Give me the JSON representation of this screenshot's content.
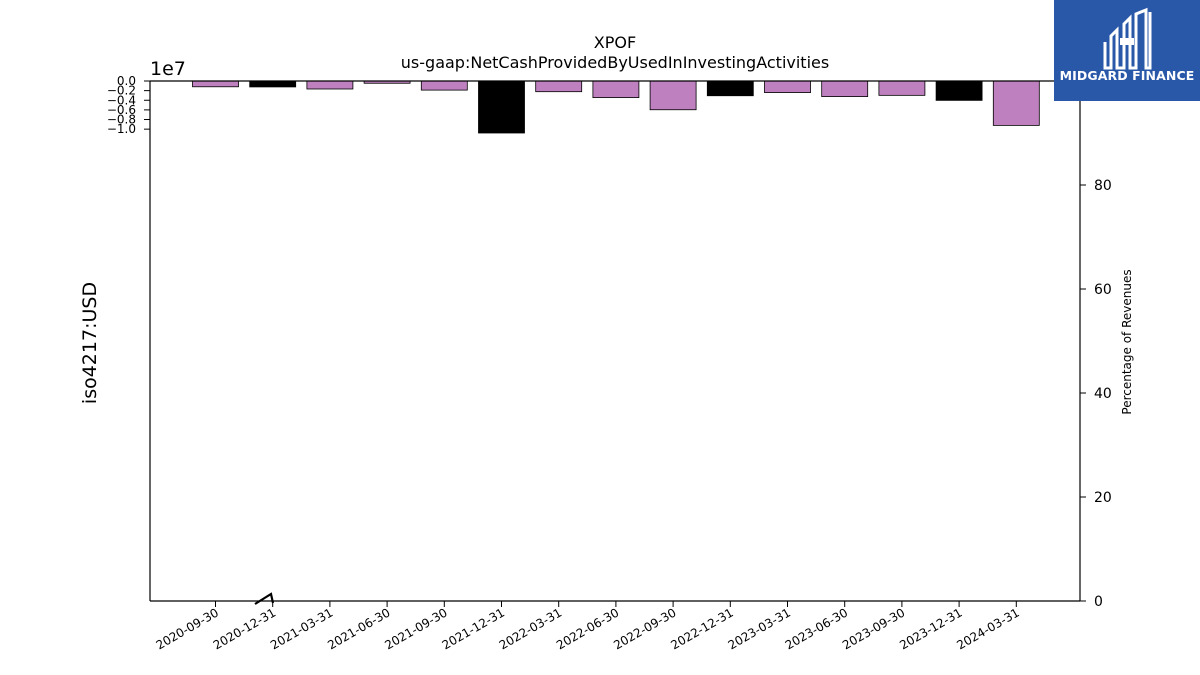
{
  "logo": {
    "text": "MIDGARD FINANCE",
    "background": "#2a58a9"
  },
  "chart_data": {
    "type": "bar",
    "title": "XPOF",
    "subtitle": "us-gaap:NetCashProvidedByUsedInInvestingActivities",
    "ylabel": "iso4217:USD",
    "y_offset_label": "1e7",
    "y2label": "Percentage of Revenues",
    "ylim": [
      -10.8,
      0.0
    ],
    "y_ticks": [
      "0.0",
      "−0.2",
      "−0.4",
      "−0.6",
      "−0.8",
      "−1.0"
    ],
    "y_tick_values": [
      0.0,
      -0.2,
      -0.4,
      -0.6,
      -0.8,
      -1.0
    ],
    "y2lim": [
      0,
      100
    ],
    "y2_ticks": [
      "0",
      "20",
      "40",
      "60",
      "80"
    ],
    "y2_tick_values": [
      0,
      20,
      40,
      60,
      80
    ],
    "categories": [
      "2020-09-30",
      "2020-12-31",
      "2021-03-31",
      "2021-06-30",
      "2021-09-30",
      "2021-12-31",
      "2022-03-31",
      "2022-06-30",
      "2022-09-30",
      "2022-12-31",
      "2023-03-31",
      "2023-06-30",
      "2023-09-30",
      "2023-12-31",
      "2024-03-31"
    ],
    "values": [
      -1200000,
      -1230000,
      -1660000,
      -470000,
      -1890000,
      -10800000,
      -2220000,
      -3450000,
      -5970000,
      -3060000,
      -2410000,
      -3240000,
      -2980000,
      -4020000,
      -9220000
    ],
    "colors": [
      "#bf80bf",
      "#000000",
      "#bf80bf",
      "#bf80bf",
      "#bf80bf",
      "#000000",
      "#bf80bf",
      "#bf80bf",
      "#bf80bf",
      "#000000",
      "#bf80bf",
      "#bf80bf",
      "#bf80bf",
      "#000000",
      "#bf80bf"
    ],
    "grid": false,
    "legend": "none"
  }
}
